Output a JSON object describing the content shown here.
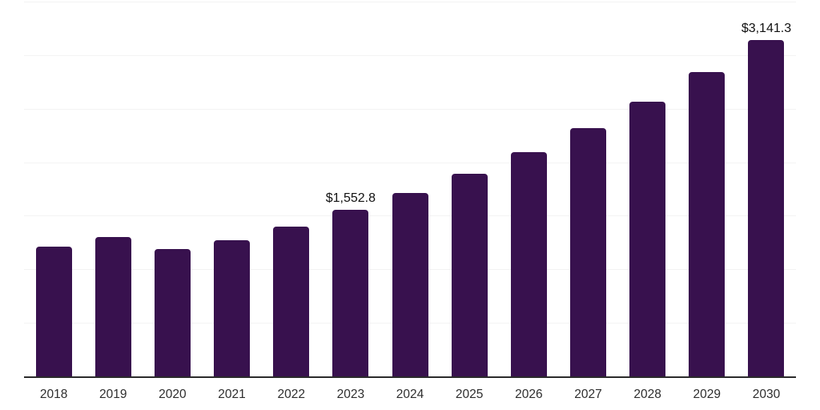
{
  "chart": {
    "background": "#ffffff",
    "bar_color": "#38114e",
    "gridline_color": "#f3f3f3",
    "axis_line_color": "#2b2b2b",
    "tick_label_color": "#2e2e2e",
    "data_label_color": "#111111"
  },
  "chart_data": {
    "type": "bar",
    "title": "",
    "xlabel": "",
    "ylabel": "",
    "categories": [
      "2018",
      "2019",
      "2020",
      "2021",
      "2022",
      "2023",
      "2024",
      "2025",
      "2026",
      "2027",
      "2028",
      "2029",
      "2030"
    ],
    "values": [
      1215,
      1300,
      1190,
      1275,
      1400,
      1552.8,
      1710,
      1895,
      2095,
      2320,
      2565,
      2845,
      3141.3
    ],
    "data_labels": [
      {
        "category": "2023",
        "text": "$1,552.8"
      },
      {
        "category": "2030",
        "text": "$3,141.3"
      }
    ],
    "ylim": [
      0,
      3500
    ],
    "gridline_interval": 500,
    "grid": true,
    "legend": false,
    "y_axis_labels_visible": false,
    "currency_unit": "$"
  }
}
